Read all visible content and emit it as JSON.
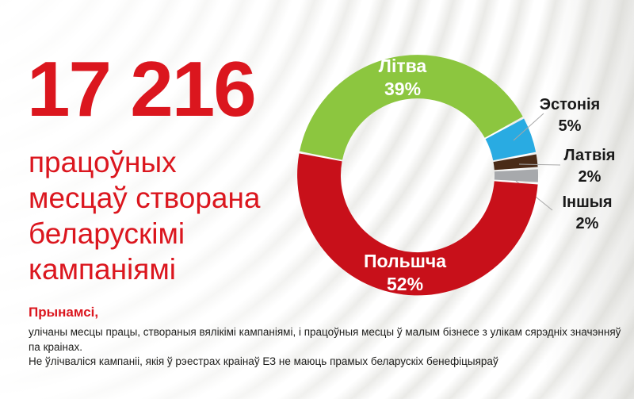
{
  "headline": {
    "number": "17 216",
    "subtitle_lines": [
      "працоўных",
      "месцаў створана",
      "беларускімі",
      "кампаніямі"
    ]
  },
  "footnote": {
    "lead": "Прынамсі,",
    "lines": [
      "улічаны месцы працы, створаныя вялікімі кампаніямі, і працоўныя месцы ў малым бізнесе з улікам сярэдніх значэнняў па краінах.",
      "Не ўлічваліся кампаніі, якія ў рэестрах краінаў ЕЗ не маюць прамых беларускіх бенефіцыяраў"
    ]
  },
  "colors": {
    "accent_red": "#DB161E",
    "leader_line": "#a8a8a8",
    "label_dark": "#1a1a1a",
    "label_light": "#ffffff"
  },
  "chart_data": {
    "type": "pie",
    "donut": true,
    "unit": "%",
    "start_angle_deg": -79,
    "legend": "none",
    "segments": [
      {
        "name": "lithuania",
        "label": "Літва",
        "value": 39,
        "color": "#8CC63F",
        "placement": "inside"
      },
      {
        "name": "estonia",
        "label": "Эстонія",
        "value": 5,
        "color": "#29ABE2",
        "placement": "outside"
      },
      {
        "name": "latvia",
        "label": "Латвія",
        "value": 2,
        "color": "#4A2B17",
        "placement": "outside"
      },
      {
        "name": "others",
        "label": "Іншыя",
        "value": 2,
        "color": "#A7A9AC",
        "placement": "outside"
      },
      {
        "name": "poland",
        "label": "Польшча",
        "value": 52,
        "color": "#C8101A",
        "placement": "inside"
      }
    ]
  }
}
